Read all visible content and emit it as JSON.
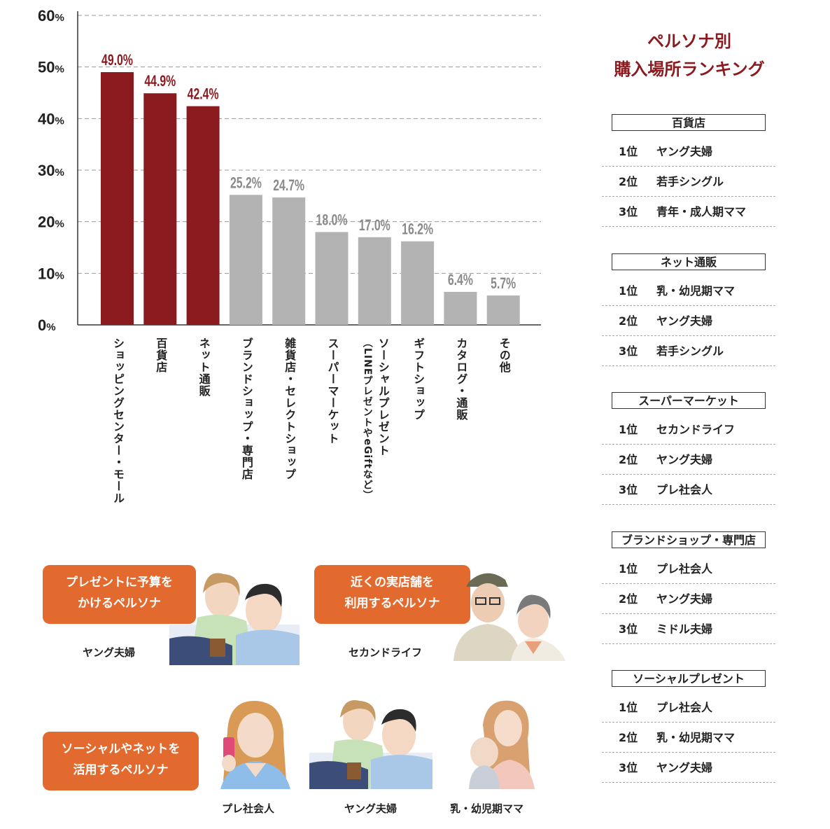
{
  "chart_data": {
    "type": "bar",
    "title": "",
    "xlabel": "",
    "ylabel": "",
    "ylim": [
      0,
      60
    ],
    "yticks": [
      "0",
      "10",
      "20",
      "30",
      "40",
      "50",
      "60"
    ],
    "y_unit": "%",
    "grid": "dashed",
    "categories": [
      "ショッピングセンター・モール",
      "百貨店",
      "ネット通販",
      "ブランドショップ・専門店",
      "雑貨店・セレクトショップ",
      "スーパーマーケット",
      "ソーシャルプレゼント",
      "ギフトショップ",
      "カタログ・通販",
      "その他"
    ],
    "category_note": "（LINEプレゼントやeGiftなど）",
    "values": [
      49.0,
      44.9,
      42.4,
      25.2,
      24.7,
      18.0,
      17.0,
      16.2,
      6.4,
      5.7
    ],
    "value_labels": [
      "49.0%",
      "44.9%",
      "42.4%",
      "25.2%",
      "24.7%",
      "18.0%",
      "17.0%",
      "16.2%",
      "6.4%",
      "5.7%"
    ],
    "highlight_count": 3,
    "colors": {
      "highlight": "#8b1a1f",
      "normal": "#b3b3b3",
      "highlight_label": "#8b1a1f",
      "normal_label": "#8a8a8a"
    }
  },
  "ranking": {
    "title_line1": "ペルソナ別",
    "title_line2": "購入場所ランキング",
    "groups": [
      {
        "name": "百貨店",
        "items": [
          {
            "rank": "1位",
            "persona": "ヤング夫婦"
          },
          {
            "rank": "2位",
            "persona": "若手シングル"
          },
          {
            "rank": "3位",
            "persona": "青年・成人期ママ"
          }
        ]
      },
      {
        "name": "ネット通販",
        "items": [
          {
            "rank": "1位",
            "persona": "乳・幼児期ママ"
          },
          {
            "rank": "2位",
            "persona": "ヤング夫婦"
          },
          {
            "rank": "3位",
            "persona": "若手シングル"
          }
        ]
      },
      {
        "name": "スーパーマーケット",
        "items": [
          {
            "rank": "1位",
            "persona": "セカンドライフ"
          },
          {
            "rank": "2位",
            "persona": "ヤング夫婦"
          },
          {
            "rank": "3位",
            "persona": "プレ社会人"
          }
        ]
      },
      {
        "name": "ブランドショップ・専門店",
        "items": [
          {
            "rank": "1位",
            "persona": "プレ社会人"
          },
          {
            "rank": "2位",
            "persona": "ヤング夫婦"
          },
          {
            "rank": "3位",
            "persona": "ミドル夫婦"
          }
        ]
      },
      {
        "name": "ソーシャルプレゼント",
        "items": [
          {
            "rank": "1位",
            "persona": "プレ社会人"
          },
          {
            "rank": "2位",
            "persona": "乳・幼児期ママ"
          },
          {
            "rank": "3位",
            "persona": "ヤング夫婦"
          }
        ]
      }
    ]
  },
  "callouts": {
    "budget": {
      "line1": "プレゼントに予算を",
      "line2": "かけるペルソナ"
    },
    "store": {
      "line1": "近くの実店舗を",
      "line2": "利用するペルソナ"
    },
    "social": {
      "line1": "ソーシャルやネットを",
      "line2": "活用するペルソナ"
    }
  },
  "personas": {
    "young_couple_1": "ヤング夫婦",
    "second_life": "セカンドライフ",
    "pre_worker": "プレ社会人",
    "young_couple_2": "ヤング夫婦",
    "infant_mama": "乳・幼児期ママ"
  }
}
